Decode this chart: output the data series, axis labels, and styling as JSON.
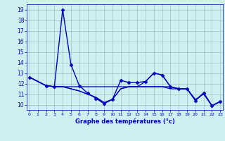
{
  "xlabel": "Graphe des températures (°c)",
  "background_color": "#cff0f0",
  "grid_color": "#a8c8c8",
  "line_color": "#0000bb",
  "xlim": [
    -0.3,
    23.3
  ],
  "ylim": [
    9.5,
    19.5
  ],
  "yticks": [
    10,
    11,
    12,
    13,
    14,
    15,
    16,
    17,
    18,
    19
  ],
  "xticks": [
    0,
    1,
    2,
    3,
    4,
    5,
    6,
    7,
    8,
    9,
    10,
    11,
    12,
    13,
    14,
    15,
    16,
    17,
    18,
    19,
    20,
    21,
    22,
    23
  ],
  "series": [
    {
      "x": [
        0,
        2,
        3,
        4,
        5,
        6,
        7,
        8,
        9,
        10,
        11,
        12,
        13,
        14,
        15,
        16,
        17,
        18,
        19,
        20,
        21,
        22,
        23
      ],
      "y": [
        12.6,
        11.8,
        11.7,
        19.0,
        13.8,
        11.8,
        11.1,
        10.6,
        10.1,
        10.5,
        12.3,
        12.1,
        12.1,
        12.2,
        13.0,
        12.8,
        11.7,
        11.5,
        11.5,
        10.4,
        11.1,
        9.9,
        10.3
      ],
      "marker": "D",
      "markersize": 2.5,
      "lw": 1.0
    },
    {
      "x": [
        0,
        2,
        3,
        4,
        5,
        6,
        7,
        8,
        9,
        10,
        11,
        12,
        13,
        14,
        15,
        16,
        17,
        18,
        19,
        20,
        21,
        22,
        23
      ],
      "y": [
        12.6,
        11.8,
        11.7,
        11.7,
        11.7,
        11.7,
        11.7,
        11.7,
        11.7,
        11.7,
        11.7,
        11.7,
        11.7,
        11.7,
        11.7,
        11.7,
        11.7,
        11.5,
        11.5,
        10.4,
        11.1,
        9.9,
        10.3
      ],
      "marker": null,
      "markersize": 0,
      "lw": 0.9
    },
    {
      "x": [
        0,
        2,
        3,
        4,
        5,
        6,
        7,
        8,
        9,
        10,
        11,
        12,
        13,
        14,
        15,
        16,
        17,
        18,
        19,
        20,
        21,
        22,
        23
      ],
      "y": [
        12.6,
        11.8,
        11.7,
        11.7,
        11.5,
        11.3,
        11.0,
        10.7,
        10.2,
        10.5,
        11.5,
        11.7,
        11.7,
        11.7,
        11.7,
        11.7,
        11.5,
        11.5,
        11.5,
        10.5,
        11.0,
        9.9,
        10.3
      ],
      "marker": null,
      "markersize": 0,
      "lw": 0.9
    },
    {
      "x": [
        0,
        2,
        3,
        4,
        5,
        6,
        7,
        8,
        9,
        10,
        11,
        12,
        13,
        14,
        15,
        16,
        17,
        18,
        19,
        20,
        21,
        22,
        23
      ],
      "y": [
        12.6,
        11.8,
        11.7,
        11.7,
        11.5,
        11.3,
        11.0,
        10.7,
        10.2,
        10.5,
        11.5,
        11.7,
        11.7,
        12.2,
        13.0,
        12.8,
        11.7,
        11.5,
        11.5,
        10.4,
        11.1,
        9.9,
        10.3
      ],
      "marker": null,
      "markersize": 0,
      "lw": 0.9
    }
  ]
}
